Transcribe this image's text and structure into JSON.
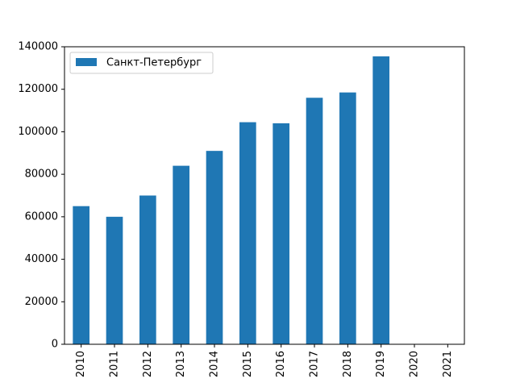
{
  "chart_data": {
    "type": "bar",
    "categories": [
      "2010",
      "2011",
      "2012",
      "2013",
      "2014",
      "2015",
      "2016",
      "2017",
      "2018",
      "2019",
      "2020",
      "2021"
    ],
    "series": [
      {
        "name": "Санкт-Петербург",
        "color": "#1f77b4",
        "values": [
          65000,
          60000,
          70000,
          84000,
          91000,
          104500,
          104000,
          116000,
          118500,
          135500,
          null,
          null
        ]
      }
    ],
    "title": "",
    "xlabel": "",
    "ylabel": "",
    "ylim": [
      0,
      140000
    ],
    "yticks": [
      "0",
      "20000",
      "40000",
      "60000",
      "80000",
      "100000",
      "120000",
      "140000"
    ],
    "grid": false,
    "legend": {
      "placement": "top-left",
      "entries": [
        "Санкт-Петербург"
      ]
    },
    "x_tick_rotation": "vertical"
  }
}
